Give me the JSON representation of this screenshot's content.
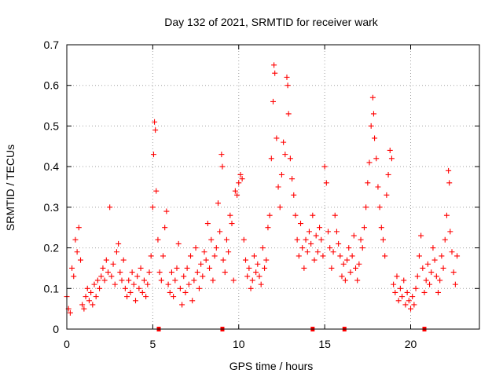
{
  "chart_data": {
    "type": "scatter",
    "title": "Day 132 of 2021, SRMTID for receiver wark",
    "xlabel": "GPS time / hours",
    "ylabel": "SRMTID / TECUs",
    "xlim": [
      0,
      24
    ],
    "ylim": [
      0,
      0.7
    ],
    "x_ticks": [
      0,
      5,
      10,
      15,
      20
    ],
    "x_tick_labels": [
      "0",
      "5",
      "10",
      "15",
      "20"
    ],
    "y_ticks": [
      0,
      0.1,
      0.2,
      0.3,
      0.4,
      0.5,
      0.6,
      0.7
    ],
    "y_tick_labels": [
      "0",
      "0.1",
      "0.2",
      "0.3",
      "0.4",
      "0.5",
      "0.6",
      "0.7"
    ],
    "grid": true,
    "series_color": "#ff0000",
    "marker": "plus",
    "gap_markers_x": [
      5.35,
      9.05,
      14.3,
      16.15,
      20.8
    ],
    "series": [
      {
        "name": "SRMTID",
        "points": [
          [
            0.0,
            0.08
          ],
          [
            0.1,
            0.05
          ],
          [
            0.2,
            0.04
          ],
          [
            0.3,
            0.15
          ],
          [
            0.4,
            0.13
          ],
          [
            0.5,
            0.22
          ],
          [
            0.6,
            0.19
          ],
          [
            0.7,
            0.25
          ],
          [
            0.8,
            0.17
          ],
          [
            0.9,
            0.06
          ],
          [
            1.0,
            0.05
          ],
          [
            1.1,
            0.08
          ],
          [
            1.2,
            0.1
          ],
          [
            1.3,
            0.07
          ],
          [
            1.4,
            0.09
          ],
          [
            1.5,
            0.06
          ],
          [
            1.6,
            0.11
          ],
          [
            1.7,
            0.08
          ],
          [
            1.8,
            0.12
          ],
          [
            1.9,
            0.1
          ],
          [
            2.0,
            0.13
          ],
          [
            2.1,
            0.15
          ],
          [
            2.2,
            0.12
          ],
          [
            2.3,
            0.17
          ],
          [
            2.4,
            0.14
          ],
          [
            2.5,
            0.3
          ],
          [
            2.6,
            0.13
          ],
          [
            2.7,
            0.16
          ],
          [
            2.8,
            0.11
          ],
          [
            2.9,
            0.19
          ],
          [
            3.0,
            0.21
          ],
          [
            3.1,
            0.14
          ],
          [
            3.2,
            0.12
          ],
          [
            3.3,
            0.17
          ],
          [
            3.4,
            0.1
          ],
          [
            3.5,
            0.08
          ],
          [
            3.6,
            0.12
          ],
          [
            3.7,
            0.09
          ],
          [
            3.8,
            0.14
          ],
          [
            3.9,
            0.11
          ],
          [
            4.0,
            0.07
          ],
          [
            4.1,
            0.13
          ],
          [
            4.2,
            0.1
          ],
          [
            4.3,
            0.15
          ],
          [
            4.4,
            0.09
          ],
          [
            4.5,
            0.12
          ],
          [
            4.6,
            0.08
          ],
          [
            4.7,
            0.11
          ],
          [
            4.8,
            0.14
          ],
          [
            4.9,
            0.18
          ],
          [
            5.0,
            0.3
          ],
          [
            5.05,
            0.43
          ],
          [
            5.1,
            0.51
          ],
          [
            5.15,
            0.49
          ],
          [
            5.2,
            0.34
          ],
          [
            5.3,
            0.22
          ],
          [
            5.4,
            0.14
          ],
          [
            5.5,
            0.12
          ],
          [
            5.6,
            0.18
          ],
          [
            5.7,
            0.25
          ],
          [
            5.8,
            0.29
          ],
          [
            5.9,
            0.11
          ],
          [
            6.0,
            0.09
          ],
          [
            6.1,
            0.14
          ],
          [
            6.2,
            0.08
          ],
          [
            6.3,
            0.12
          ],
          [
            6.4,
            0.15
          ],
          [
            6.5,
            0.21
          ],
          [
            6.6,
            0.1
          ],
          [
            6.7,
            0.06
          ],
          [
            6.8,
            0.13
          ],
          [
            6.9,
            0.09
          ],
          [
            7.0,
            0.15
          ],
          [
            7.1,
            0.11
          ],
          [
            7.2,
            0.18
          ],
          [
            7.3,
            0.07
          ],
          [
            7.4,
            0.12
          ],
          [
            7.5,
            0.2
          ],
          [
            7.6,
            0.14
          ],
          [
            7.7,
            0.1
          ],
          [
            7.8,
            0.16
          ],
          [
            7.9,
            0.13
          ],
          [
            8.0,
            0.19
          ],
          [
            8.1,
            0.17
          ],
          [
            8.2,
            0.26
          ],
          [
            8.3,
            0.15
          ],
          [
            8.4,
            0.22
          ],
          [
            8.5,
            0.12
          ],
          [
            8.6,
            0.18
          ],
          [
            8.7,
            0.2
          ],
          [
            8.8,
            0.31
          ],
          [
            8.9,
            0.24
          ],
          [
            9.0,
            0.43
          ],
          [
            9.05,
            0.4
          ],
          [
            9.1,
            0.17
          ],
          [
            9.2,
            0.14
          ],
          [
            9.3,
            0.22
          ],
          [
            9.4,
            0.19
          ],
          [
            9.5,
            0.28
          ],
          [
            9.6,
            0.26
          ],
          [
            9.7,
            0.12
          ],
          [
            9.8,
            0.34
          ],
          [
            9.9,
            0.33
          ],
          [
            10.0,
            0.36
          ],
          [
            10.1,
            0.38
          ],
          [
            10.2,
            0.37
          ],
          [
            10.3,
            0.22
          ],
          [
            10.4,
            0.17
          ],
          [
            10.5,
            0.13
          ],
          [
            10.6,
            0.15
          ],
          [
            10.7,
            0.1
          ],
          [
            10.8,
            0.12
          ],
          [
            10.9,
            0.18
          ],
          [
            11.0,
            0.14
          ],
          [
            11.1,
            0.16
          ],
          [
            11.2,
            0.13
          ],
          [
            11.3,
            0.11
          ],
          [
            11.4,
            0.2
          ],
          [
            11.5,
            0.15
          ],
          [
            11.6,
            0.17
          ],
          [
            11.7,
            0.25
          ],
          [
            11.8,
            0.28
          ],
          [
            11.9,
            0.42
          ],
          [
            12.0,
            0.56
          ],
          [
            12.05,
            0.65
          ],
          [
            12.1,
            0.63
          ],
          [
            12.2,
            0.47
          ],
          [
            12.3,
            0.35
          ],
          [
            12.4,
            0.3
          ],
          [
            12.5,
            0.38
          ],
          [
            12.6,
            0.46
          ],
          [
            12.7,
            0.43
          ],
          [
            12.8,
            0.62
          ],
          [
            12.85,
            0.6
          ],
          [
            12.9,
            0.53
          ],
          [
            13.0,
            0.42
          ],
          [
            13.1,
            0.37
          ],
          [
            13.2,
            0.33
          ],
          [
            13.3,
            0.28
          ],
          [
            13.4,
            0.22
          ],
          [
            13.5,
            0.18
          ],
          [
            13.6,
            0.26
          ],
          [
            13.7,
            0.2
          ],
          [
            13.8,
            0.15
          ],
          [
            13.9,
            0.22
          ],
          [
            14.0,
            0.19
          ],
          [
            14.1,
            0.24
          ],
          [
            14.2,
            0.21
          ],
          [
            14.3,
            0.28
          ],
          [
            14.4,
            0.17
          ],
          [
            14.5,
            0.23
          ],
          [
            14.6,
            0.19
          ],
          [
            14.7,
            0.25
          ],
          [
            14.8,
            0.22
          ],
          [
            14.9,
            0.18
          ],
          [
            15.0,
            0.4
          ],
          [
            15.1,
            0.36
          ],
          [
            15.2,
            0.24
          ],
          [
            15.3,
            0.2
          ],
          [
            15.4,
            0.15
          ],
          [
            15.5,
            0.19
          ],
          [
            15.6,
            0.28
          ],
          [
            15.7,
            0.24
          ],
          [
            15.8,
            0.21
          ],
          [
            15.9,
            0.18
          ],
          [
            16.0,
            0.13
          ],
          [
            16.1,
            0.16
          ],
          [
            16.2,
            0.12
          ],
          [
            16.3,
            0.17
          ],
          [
            16.4,
            0.2
          ],
          [
            16.5,
            0.14
          ],
          [
            16.6,
            0.18
          ],
          [
            16.7,
            0.23
          ],
          [
            16.8,
            0.15
          ],
          [
            16.9,
            0.12
          ],
          [
            17.0,
            0.16
          ],
          [
            17.1,
            0.22
          ],
          [
            17.2,
            0.2
          ],
          [
            17.3,
            0.25
          ],
          [
            17.4,
            0.3
          ],
          [
            17.5,
            0.36
          ],
          [
            17.6,
            0.41
          ],
          [
            17.7,
            0.5
          ],
          [
            17.8,
            0.57
          ],
          [
            17.85,
            0.53
          ],
          [
            17.9,
            0.47
          ],
          [
            18.0,
            0.42
          ],
          [
            18.1,
            0.35
          ],
          [
            18.2,
            0.3
          ],
          [
            18.3,
            0.25
          ],
          [
            18.4,
            0.22
          ],
          [
            18.5,
            0.18
          ],
          [
            18.6,
            0.33
          ],
          [
            18.7,
            0.38
          ],
          [
            18.8,
            0.44
          ],
          [
            18.9,
            0.42
          ],
          [
            19.0,
            0.11
          ],
          [
            19.1,
            0.09
          ],
          [
            19.2,
            0.13
          ],
          [
            19.3,
            0.07
          ],
          [
            19.4,
            0.1
          ],
          [
            19.5,
            0.08
          ],
          [
            19.6,
            0.12
          ],
          [
            19.7,
            0.06
          ],
          [
            19.8,
            0.09
          ],
          [
            19.9,
            0.07
          ],
          [
            20.0,
            0.05
          ],
          [
            20.1,
            0.08
          ],
          [
            20.2,
            0.06
          ],
          [
            20.3,
            0.1
          ],
          [
            20.4,
            0.13
          ],
          [
            20.5,
            0.18
          ],
          [
            20.6,
            0.23
          ],
          [
            20.7,
            0.15
          ],
          [
            20.8,
            0.09
          ],
          [
            20.9,
            0.12
          ],
          [
            21.0,
            0.16
          ],
          [
            21.1,
            0.11
          ],
          [
            21.2,
            0.14
          ],
          [
            21.3,
            0.2
          ],
          [
            21.4,
            0.17
          ],
          [
            21.5,
            0.13
          ],
          [
            21.6,
            0.09
          ],
          [
            21.7,
            0.12
          ],
          [
            21.8,
            0.18
          ],
          [
            21.9,
            0.15
          ],
          [
            22.0,
            0.22
          ],
          [
            22.1,
            0.28
          ],
          [
            22.2,
            0.39
          ],
          [
            22.25,
            0.36
          ],
          [
            22.3,
            0.24
          ],
          [
            22.4,
            0.19
          ],
          [
            22.5,
            0.14
          ],
          [
            22.6,
            0.11
          ],
          [
            22.7,
            0.18
          ]
        ]
      }
    ]
  }
}
